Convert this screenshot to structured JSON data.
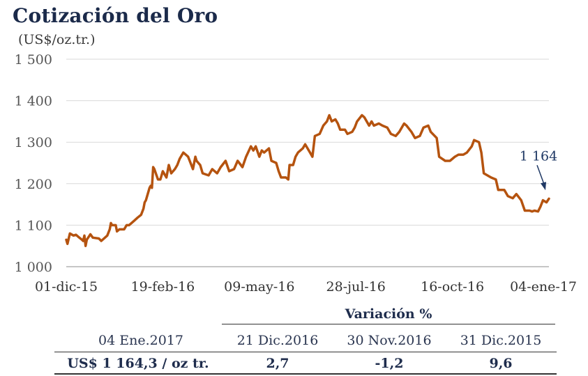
{
  "title": "Cotización del Oro",
  "unit": "(US$/oz.tr.)",
  "chart_data": {
    "type": "line",
    "series_color": "#b5530f",
    "grid": true,
    "ylim": [
      1000,
      1500
    ],
    "yticks": [
      1000,
      1100,
      1200,
      1300,
      1400,
      1500
    ],
    "ytick_labels": [
      "1 000",
      "1 100",
      "1 200",
      "1 300",
      "1 400",
      "1 500"
    ],
    "xlim": [
      "2015-12-01",
      "2017-01-04"
    ],
    "xticks": [
      "2015-12-01",
      "2016-02-19",
      "2016-05-09",
      "2016-07-28",
      "2016-10-16",
      "2017-01-04"
    ],
    "xtick_labels": [
      "01-dic-15",
      "19-feb-16",
      "09-may-16",
      "28-jul-16",
      "16-oct-16",
      "04-ene-17"
    ],
    "annotation": {
      "label": "1 164",
      "x": "2017-01-04",
      "y": 1164
    },
    "series": [
      {
        "points": [
          [
            "2015-12-01",
            1065
          ],
          [
            "2015-12-02",
            1055
          ],
          [
            "2015-12-04",
            1080
          ],
          [
            "2015-12-07",
            1075
          ],
          [
            "2015-12-09",
            1077
          ],
          [
            "2015-12-11",
            1072
          ],
          [
            "2015-12-14",
            1065
          ],
          [
            "2015-12-15",
            1062
          ],
          [
            "2015-12-16",
            1075
          ],
          [
            "2015-12-17",
            1050
          ],
          [
            "2015-12-18",
            1065
          ],
          [
            "2015-12-21",
            1078
          ],
          [
            "2015-12-23",
            1070
          ],
          [
            "2015-12-28",
            1068
          ],
          [
            "2015-12-30",
            1062
          ],
          [
            "2016-01-04",
            1075
          ],
          [
            "2016-01-06",
            1090
          ],
          [
            "2016-01-07",
            1105
          ],
          [
            "2016-01-08",
            1100
          ],
          [
            "2016-01-11",
            1100
          ],
          [
            "2016-01-12",
            1085
          ],
          [
            "2016-01-14",
            1090
          ],
          [
            "2016-01-18",
            1090
          ],
          [
            "2016-01-20",
            1100
          ],
          [
            "2016-01-22",
            1100
          ],
          [
            "2016-01-26",
            1110
          ],
          [
            "2016-01-29",
            1118
          ],
          [
            "2016-02-01",
            1125
          ],
          [
            "2016-02-03",
            1140
          ],
          [
            "2016-02-04",
            1155
          ],
          [
            "2016-02-05",
            1160
          ],
          [
            "2016-02-08",
            1190
          ],
          [
            "2016-02-09",
            1195
          ],
          [
            "2016-02-10",
            1190
          ],
          [
            "2016-02-11",
            1240
          ],
          [
            "2016-02-12",
            1235
          ],
          [
            "2016-02-15",
            1210
          ],
          [
            "2016-02-17",
            1210
          ],
          [
            "2016-02-19",
            1230
          ],
          [
            "2016-02-22",
            1215
          ],
          [
            "2016-02-24",
            1245
          ],
          [
            "2016-02-26",
            1225
          ],
          [
            "2016-02-29",
            1235
          ],
          [
            "2016-03-02",
            1245
          ],
          [
            "2016-03-04",
            1260
          ],
          [
            "2016-03-07",
            1275
          ],
          [
            "2016-03-09",
            1270
          ],
          [
            "2016-03-11",
            1265
          ],
          [
            "2016-03-15",
            1235
          ],
          [
            "2016-03-17",
            1265
          ],
          [
            "2016-03-18",
            1255
          ],
          [
            "2016-03-21",
            1245
          ],
          [
            "2016-03-23",
            1225
          ],
          [
            "2016-03-28",
            1220
          ],
          [
            "2016-03-31",
            1235
          ],
          [
            "2016-04-04",
            1225
          ],
          [
            "2016-04-07",
            1240
          ],
          [
            "2016-04-11",
            1255
          ],
          [
            "2016-04-14",
            1230
          ],
          [
            "2016-04-18",
            1235
          ],
          [
            "2016-04-21",
            1255
          ],
          [
            "2016-04-25",
            1240
          ],
          [
            "2016-04-28",
            1265
          ],
          [
            "2016-05-02",
            1290
          ],
          [
            "2016-05-04",
            1280
          ],
          [
            "2016-05-06",
            1290
          ],
          [
            "2016-05-09",
            1265
          ],
          [
            "2016-05-11",
            1280
          ],
          [
            "2016-05-13",
            1275
          ],
          [
            "2016-05-17",
            1285
          ],
          [
            "2016-05-19",
            1255
          ],
          [
            "2016-05-23",
            1250
          ],
          [
            "2016-05-25",
            1230
          ],
          [
            "2016-05-27",
            1215
          ],
          [
            "2016-05-31",
            1215
          ],
          [
            "2016-06-02",
            1210
          ],
          [
            "2016-06-03",
            1245
          ],
          [
            "2016-06-06",
            1245
          ],
          [
            "2016-06-08",
            1265
          ],
          [
            "2016-06-10",
            1275
          ],
          [
            "2016-06-14",
            1285
          ],
          [
            "2016-06-16",
            1295
          ],
          [
            "2016-06-20",
            1275
          ],
          [
            "2016-06-22",
            1265
          ],
          [
            "2016-06-24",
            1315
          ],
          [
            "2016-06-28",
            1320
          ],
          [
            "2016-07-01",
            1340
          ],
          [
            "2016-07-04",
            1350
          ],
          [
            "2016-07-06",
            1365
          ],
          [
            "2016-07-08",
            1350
          ],
          [
            "2016-07-11",
            1355
          ],
          [
            "2016-07-13",
            1345
          ],
          [
            "2016-07-15",
            1330
          ],
          [
            "2016-07-19",
            1330
          ],
          [
            "2016-07-21",
            1320
          ],
          [
            "2016-07-25",
            1325
          ],
          [
            "2016-07-27",
            1335
          ],
          [
            "2016-07-29",
            1350
          ],
          [
            "2016-08-02",
            1365
          ],
          [
            "2016-08-04",
            1360
          ],
          [
            "2016-08-08",
            1340
          ],
          [
            "2016-08-10",
            1350
          ],
          [
            "2016-08-12",
            1340
          ],
          [
            "2016-08-16",
            1345
          ],
          [
            "2016-08-19",
            1340
          ],
          [
            "2016-08-23",
            1335
          ],
          [
            "2016-08-26",
            1320
          ],
          [
            "2016-08-30",
            1315
          ],
          [
            "2016-09-02",
            1325
          ],
          [
            "2016-09-06",
            1345
          ],
          [
            "2016-09-08",
            1340
          ],
          [
            "2016-09-12",
            1325
          ],
          [
            "2016-09-15",
            1310
          ],
          [
            "2016-09-19",
            1315
          ],
          [
            "2016-09-22",
            1335
          ],
          [
            "2016-09-26",
            1340
          ],
          [
            "2016-09-28",
            1325
          ],
          [
            "2016-10-03",
            1310
          ],
          [
            "2016-10-05",
            1265
          ],
          [
            "2016-10-10",
            1255
          ],
          [
            "2016-10-14",
            1255
          ],
          [
            "2016-10-18",
            1265
          ],
          [
            "2016-10-21",
            1270
          ],
          [
            "2016-10-25",
            1270
          ],
          [
            "2016-10-28",
            1275
          ],
          [
            "2016-11-01",
            1290
          ],
          [
            "2016-11-03",
            1305
          ],
          [
            "2016-11-07",
            1300
          ],
          [
            "2016-11-09",
            1275
          ],
          [
            "2016-11-11",
            1225
          ],
          [
            "2016-11-14",
            1220
          ],
          [
            "2016-11-17",
            1215
          ],
          [
            "2016-11-21",
            1210
          ],
          [
            "2016-11-23",
            1185
          ],
          [
            "2016-11-28",
            1185
          ],
          [
            "2016-12-01",
            1170
          ],
          [
            "2016-12-05",
            1165
          ],
          [
            "2016-12-08",
            1175
          ],
          [
            "2016-12-12",
            1160
          ],
          [
            "2016-12-15",
            1135
          ],
          [
            "2016-12-19",
            1135
          ],
          [
            "2016-12-21",
            1133
          ],
          [
            "2016-12-23",
            1135
          ],
          [
            "2016-12-26",
            1133
          ],
          [
            "2016-12-28",
            1145
          ],
          [
            "2016-12-30",
            1160
          ],
          [
            "2017-01-02",
            1155
          ],
          [
            "2017-01-04",
            1164
          ]
        ]
      }
    ]
  },
  "table": {
    "variation_header": "Variación %",
    "col0_header": "04 Ene.2017",
    "col1_header": "21 Dic.2016",
    "col2_header": "30 Nov.2016",
    "col3_header": "31 Dic.2015",
    "row_label": "US$ 1 164,3 / oz tr.",
    "val1": "2,7",
    "val2": "-1,2",
    "val3": "9,6"
  }
}
